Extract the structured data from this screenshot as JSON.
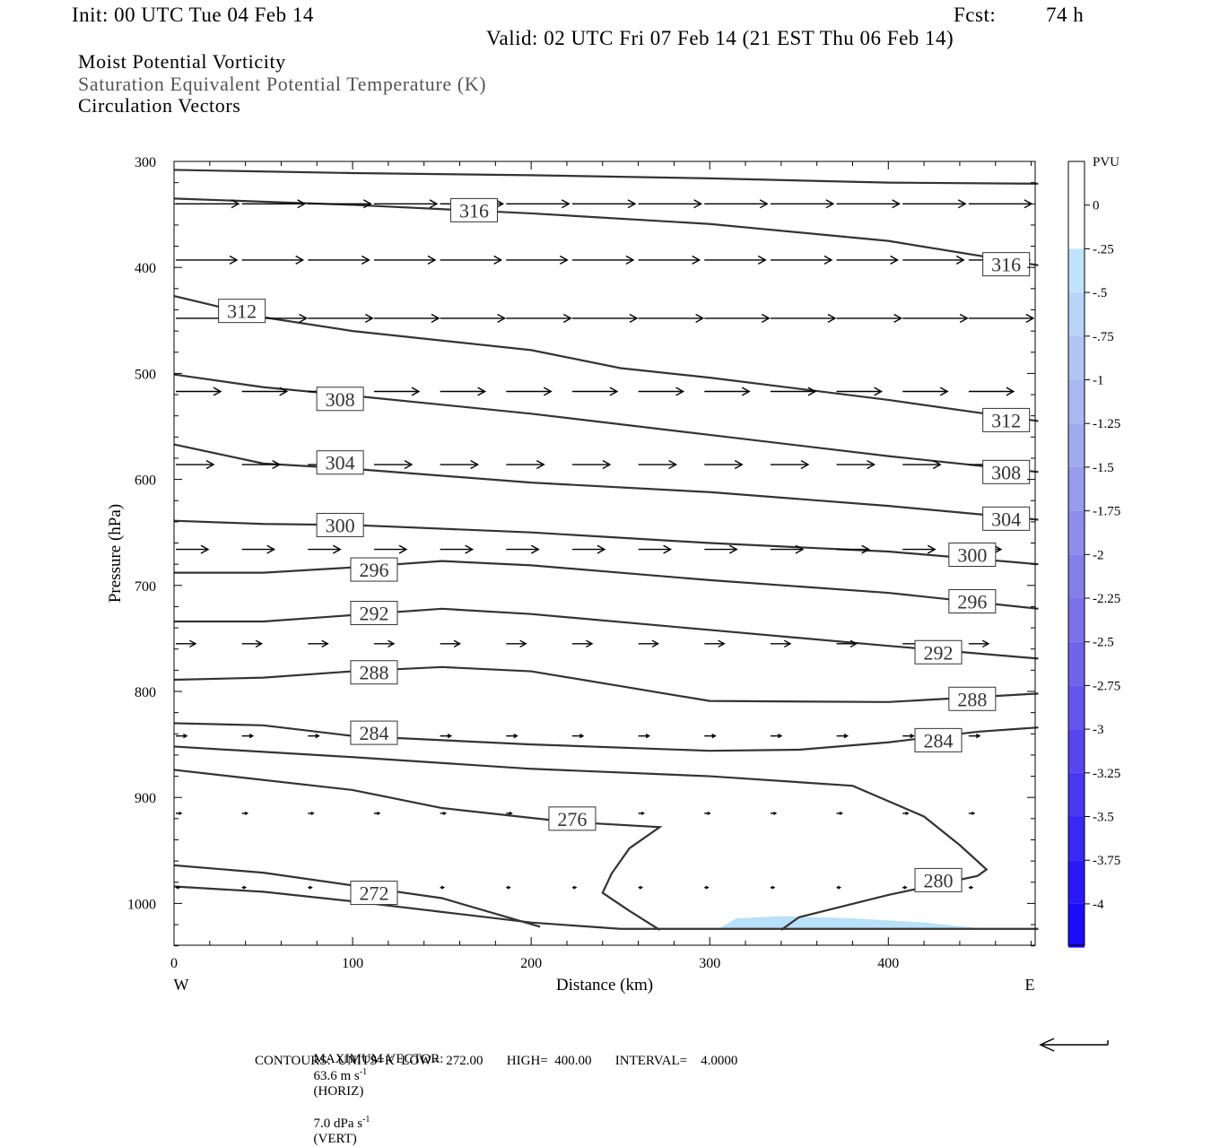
{
  "header": {
    "init": "Init: 00 UTC Tue 04 Feb 14",
    "fcst_label": "Fcst:",
    "fcst_value": "74 h",
    "valid": "Valid: 02 UTC Fri 07 Feb 14 (21 EST Thu 06 Feb 14)"
  },
  "fields": {
    "line1": "Moist Potential Vorticity",
    "line2": "Saturation Equivalent Potential Temperature (K)",
    "line3": "Circulation Vectors"
  },
  "footer": {
    "vector_label": "MAXIMUM VECTOR:",
    "vector_horiz": "63.6 m s",
    "vector_horiz_exp": "-1",
    "vector_horiz_tail": "(HORIZ)",
    "vector_vert": "7.0 dPa s",
    "vector_vert_exp": "-1",
    "vector_vert_tail": "(VERT)",
    "contours": "CONTOURS:  UNITS=K  LOW=  272.00       HIGH=  400.00       INTERVAL=    4.0000"
  },
  "colors": {
    "contour": "#333333",
    "vector": "#000000",
    "pv_fill": "#b8e0f8"
  },
  "chart_data": {
    "type": "cross-section",
    "xlabel": "Distance (km)",
    "ylabel": "Pressure (hPa)",
    "x_ticks": [
      0,
      100,
      200,
      300,
      400
    ],
    "y_ticks": [
      300,
      400,
      500,
      600,
      700,
      800,
      900,
      1000
    ],
    "xlim": [
      0,
      484
    ],
    "ylim": [
      1040,
      300
    ],
    "west_label": "W",
    "east_label": "E",
    "contours": [
      {
        "label": "316",
        "points": [
          [
            0,
            308
          ],
          [
            100,
            311
          ],
          [
            200,
            313
          ],
          [
            300,
            316
          ],
          [
            400,
            320
          ],
          [
            484,
            321
          ]
        ]
      },
      {
        "label": "316",
        "points": [
          [
            0,
            335
          ],
          [
            100,
            341
          ],
          [
            200,
            349
          ],
          [
            300,
            359
          ],
          [
            400,
            375
          ],
          [
            484,
            398
          ]
        ]
      },
      {
        "label": "312",
        "points": [
          [
            0,
            427
          ],
          [
            50,
            447
          ],
          [
            100,
            460
          ],
          [
            200,
            478
          ],
          [
            250,
            495
          ],
          [
            300,
            504
          ],
          [
            400,
            525
          ],
          [
            484,
            545
          ]
        ]
      },
      {
        "label": "308",
        "points": [
          [
            0,
            501
          ],
          [
            50,
            513
          ],
          [
            100,
            521
          ],
          [
            200,
            538
          ],
          [
            300,
            558
          ],
          [
            400,
            578
          ],
          [
            484,
            593
          ]
        ]
      },
      {
        "label": "304",
        "points": [
          [
            0,
            567
          ],
          [
            50,
            585
          ],
          [
            100,
            590
          ],
          [
            200,
            603
          ],
          [
            300,
            612
          ],
          [
            400,
            625
          ],
          [
            484,
            638
          ]
        ]
      },
      {
        "label": "300",
        "points": [
          [
            0,
            639
          ],
          [
            50,
            642
          ],
          [
            100,
            643
          ],
          [
            200,
            650
          ],
          [
            300,
            660
          ],
          [
            400,
            668
          ],
          [
            484,
            680
          ]
        ]
      },
      {
        "label": "296",
        "points": [
          [
            0,
            688
          ],
          [
            50,
            688
          ],
          [
            100,
            683
          ],
          [
            150,
            677
          ],
          [
            200,
            681
          ],
          [
            300,
            695
          ],
          [
            400,
            707
          ],
          [
            484,
            722
          ]
        ]
      },
      {
        "label": "292",
        "points": [
          [
            0,
            734
          ],
          [
            50,
            734
          ],
          [
            100,
            728
          ],
          [
            150,
            722
          ],
          [
            200,
            727
          ],
          [
            300,
            742
          ],
          [
            400,
            757
          ],
          [
            484,
            769
          ]
        ]
      },
      {
        "label": "288",
        "points": [
          [
            0,
            789
          ],
          [
            50,
            787
          ],
          [
            100,
            781
          ],
          [
            150,
            777
          ],
          [
            200,
            781
          ],
          [
            250,
            795
          ],
          [
            300,
            809
          ],
          [
            400,
            810
          ],
          [
            484,
            802
          ]
        ]
      },
      {
        "label": "284",
        "points": [
          [
            0,
            830
          ],
          [
            50,
            832
          ],
          [
            100,
            842
          ],
          [
            200,
            850
          ],
          [
            300,
            856
          ],
          [
            350,
            855
          ],
          [
            400,
            848
          ],
          [
            450,
            838
          ],
          [
            484,
            834
          ]
        ]
      },
      {
        "label": "280",
        "points": [
          [
            0,
            852
          ],
          [
            100,
            862
          ],
          [
            200,
            873
          ],
          [
            300,
            880
          ],
          [
            380,
            889
          ],
          [
            420,
            918
          ],
          [
            440,
            945
          ],
          [
            455,
            968
          ],
          [
            450,
            974
          ],
          [
            400,
            992
          ],
          [
            350,
            1013
          ],
          [
            340,
            1025
          ]
        ]
      },
      {
        "label": "276",
        "points": [
          [
            0,
            874
          ],
          [
            100,
            893
          ],
          [
            150,
            910
          ],
          [
            220,
            923
          ],
          [
            272,
            928
          ],
          [
            255,
            948
          ],
          [
            245,
            972
          ],
          [
            240,
            990
          ],
          [
            255,
            1007
          ],
          [
            272,
            1025
          ]
        ]
      },
      {
        "label": "272",
        "points": [
          [
            0,
            964
          ],
          [
            50,
            971
          ],
          [
            100,
            983
          ],
          [
            150,
            995
          ],
          [
            205,
            1022
          ]
        ]
      },
      {
        "label": "",
        "points": [
          [
            0,
            984
          ],
          [
            50,
            989
          ],
          [
            100,
            998
          ],
          [
            150,
            1008
          ],
          [
            200,
            1018
          ],
          [
            250,
            1024
          ],
          [
            484,
            1024
          ]
        ]
      }
    ],
    "contour_labels": [
      {
        "text": "316",
        "x": 168,
        "p": 346
      },
      {
        "text": "316",
        "x": 466,
        "p": 397
      },
      {
        "text": "312",
        "x": 38,
        "p": 441
      },
      {
        "text": "308",
        "x": 93,
        "p": 524
      },
      {
        "text": "304",
        "x": 93,
        "p": 584
      },
      {
        "text": "300",
        "x": 93,
        "p": 643
      },
      {
        "text": "296",
        "x": 112,
        "p": 685
      },
      {
        "text": "292",
        "x": 112,
        "p": 726
      },
      {
        "text": "288",
        "x": 112,
        "p": 782
      },
      {
        "text": "284",
        "x": 112,
        "p": 839
      },
      {
        "text": "276",
        "x": 223,
        "p": 920
      },
      {
        "text": "280",
        "x": 428,
        "p": 978
      },
      {
        "text": "272",
        "x": 112,
        "p": 990
      },
      {
        "text": "312",
        "x": 466,
        "p": 544
      },
      {
        "text": "308",
        "x": 466,
        "p": 593
      },
      {
        "text": "304",
        "x": 466,
        "p": 637
      },
      {
        "text": "300",
        "x": 447,
        "p": 671
      },
      {
        "text": "296",
        "x": 447,
        "p": 715
      },
      {
        "text": "292",
        "x": 428,
        "p": 763
      },
      {
        "text": "288",
        "x": 447,
        "p": 807
      },
      {
        "text": "284",
        "x": 428,
        "p": 846
      }
    ],
    "vector_rows": [
      {
        "p": 340,
        "u": 35,
        "xs": [
          0,
          37,
          74,
          111,
          148,
          185,
          222,
          259,
          296,
          333,
          370,
          407,
          444
        ]
      },
      {
        "p": 393,
        "u": 34,
        "xs": [
          0,
          37,
          74,
          111,
          148,
          185,
          222,
          259,
          296,
          333,
          370,
          407,
          444
        ]
      },
      {
        "p": 448,
        "u": 36,
        "xs": [
          0,
          37,
          74,
          111,
          148,
          185,
          222,
          259,
          296,
          333,
          370,
          407,
          444
        ]
      },
      {
        "p": 517,
        "u": 25,
        "xs": [
          0,
          37,
          74,
          111,
          148,
          185,
          222,
          259,
          296,
          333,
          370,
          407,
          444
        ]
      },
      {
        "p": 586,
        "u": 21,
        "xs": [
          0,
          37,
          74,
          111,
          148,
          185,
          222,
          259,
          296,
          333,
          370,
          407,
          444
        ]
      },
      {
        "p": 666,
        "u": 18,
        "xs": [
          0,
          37,
          74,
          111,
          148,
          185,
          222,
          259,
          296,
          333,
          370,
          407,
          444
        ]
      },
      {
        "p": 755,
        "u": 11,
        "xs": [
          0,
          37,
          74,
          111,
          148,
          185,
          222,
          259,
          296,
          333,
          370,
          407,
          444
        ]
      },
      {
        "p": 842,
        "u": 6,
        "xs": [
          0,
          37,
          74,
          111,
          148,
          185,
          222,
          259,
          296,
          333,
          370,
          407,
          444
        ]
      },
      {
        "p": 915,
        "u": 3,
        "xs": [
          0,
          37,
          74,
          111,
          148,
          185,
          222,
          259,
          296,
          333,
          370,
          407,
          444
        ]
      },
      {
        "p": 985,
        "u": 2,
        "xs": [
          0,
          37,
          74,
          111,
          148,
          185,
          222,
          259,
          296,
          333,
          370,
          407,
          444
        ]
      }
    ],
    "pv_negative_region": {
      "value": -0.25,
      "points": [
        [
          305,
          1024
        ],
        [
          315,
          1014
        ],
        [
          340,
          1012
        ],
        [
          380,
          1014
        ],
        [
          420,
          1018
        ],
        [
          454,
          1024
        ]
      ]
    },
    "colorbar": {
      "unit": "PVU",
      "labels": [
        "0",
        "-.25",
        "-.5",
        "-.75",
        "-1",
        "-1.25",
        "-1.5",
        "-1.75",
        "-2",
        "-2.25",
        "-2.5",
        "-2.75",
        "-3",
        "-3.25",
        "-3.5",
        "-3.75",
        "-4"
      ],
      "colors": [
        "#ffffff",
        "#ffffff",
        "#bfe3fb",
        "#b8d4f6",
        "#b1c6f3",
        "#a9b8f0",
        "#a0aaee",
        "#979cec",
        "#8e8eea",
        "#8580e9",
        "#7b72e9",
        "#7064ea",
        "#6455ec",
        "#5746ee",
        "#4937f1",
        "#3a28f4",
        "#2a19f7",
        "#1a0cfa"
      ]
    }
  }
}
